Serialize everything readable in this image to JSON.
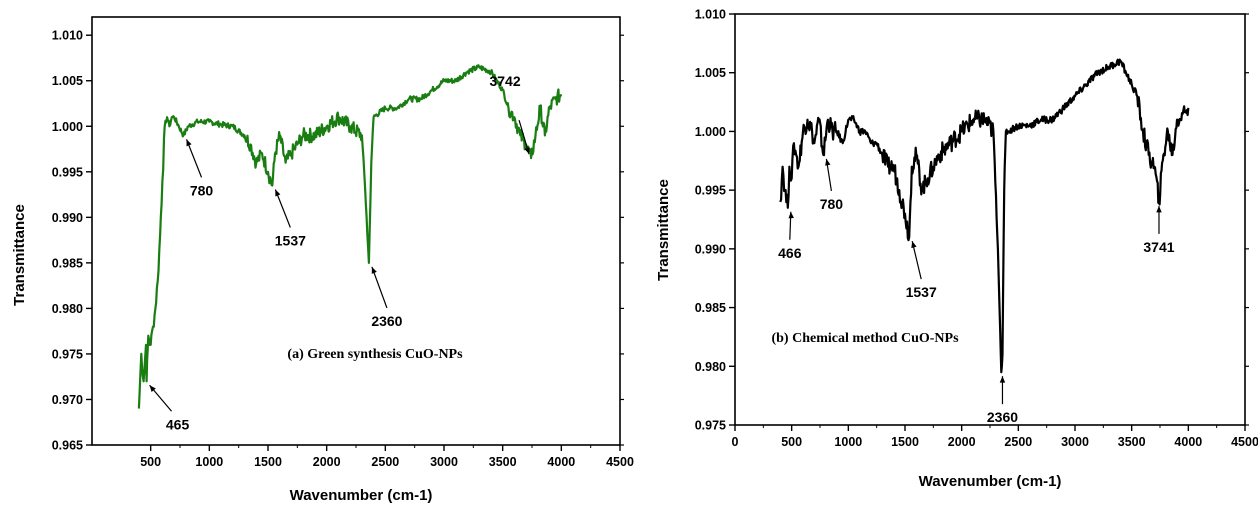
{
  "chart_data": [
    {
      "type": "line",
      "caption": "(a) Green synthesis CuO-NPs",
      "xlabel": "Wavenumber (cm-1)",
      "ylabel": "Transmittance",
      "xlim": [
        0,
        4500
      ],
      "ylim": [
        0.965,
        1.012
      ],
      "xticks": [
        500,
        1000,
        1500,
        2000,
        2500,
        3000,
        3500,
        4000,
        4500
      ],
      "yticks": [
        0.965,
        0.97,
        0.975,
        0.98,
        0.985,
        0.99,
        0.995,
        1.0,
        1.005,
        1.01
      ],
      "line_color": "#1a7d12",
      "series": [
        {
          "x": [
            400,
            420,
            440,
            460,
            465,
            480,
            500,
            520,
            540,
            560,
            580,
            600,
            620,
            640,
            660,
            680,
            700,
            740,
            780,
            820,
            900,
            1000,
            1100,
            1200,
            1300,
            1350,
            1400,
            1450,
            1500,
            1537,
            1560,
            1600,
            1650,
            1700,
            1750,
            1800,
            1900,
            2000,
            2100,
            2200,
            2300,
            2320,
            2340,
            2360,
            2380,
            2400,
            2500,
            2600,
            2700,
            2800,
            2900,
            3000,
            3100,
            3200,
            3300,
            3400,
            3450,
            3500,
            3550,
            3600,
            3650,
            3700,
            3742,
            3780,
            3820,
            3860,
            3900,
            3950,
            4000
          ],
          "y": [
            0.969,
            0.975,
            0.972,
            0.976,
            0.972,
            0.977,
            0.976,
            0.978,
            0.98,
            0.983,
            0.988,
            0.994,
            1.0,
            1.001,
            1.0,
            1.001,
            1.001,
            1.0,
            0.999,
            1.0,
            1.0005,
            1.0005,
            1.0002,
            1.0,
            0.999,
            0.998,
            0.996,
            0.997,
            0.995,
            0.9935,
            0.997,
            0.999,
            0.996,
            0.997,
            0.998,
            0.999,
            0.999,
            1.0,
            1.001,
            1.0,
            0.999,
            0.995,
            0.99,
            0.985,
            0.996,
            1.001,
            1.002,
            1.002,
            1.003,
            1.003,
            1.004,
            1.005,
            1.005,
            1.006,
            1.0065,
            1.006,
            1.005,
            1.004,
            1.002,
            1.001,
            0.999,
            0.998,
            0.9965,
            0.999,
            1.002,
            0.999,
            1.002,
            1.003,
            1.0035
          ]
        }
      ],
      "annotations": [
        {
          "label": "465",
          "x": 465,
          "y": 0.972
        },
        {
          "label": "780",
          "x": 780,
          "y": 0.999
        },
        {
          "label": "1537",
          "x": 1537,
          "y": 0.9935
        },
        {
          "label": "2360",
          "x": 2360,
          "y": 0.985
        },
        {
          "label": "3742",
          "x": 3742,
          "y": 0.9965
        }
      ]
    },
    {
      "type": "line",
      "caption": "(b) Chemical method CuO-NPs",
      "xlabel": "Wavenumber (cm-1)",
      "ylabel": "Transmittance",
      "xlim": [
        0,
        4500
      ],
      "ylim": [
        0.975,
        1.01
      ],
      "xticks": [
        0,
        500,
        1000,
        1500,
        2000,
        2500,
        3000,
        3500,
        4000,
        4500
      ],
      "yticks": [
        0.975,
        0.98,
        0.985,
        0.99,
        0.995,
        1.0,
        1.005,
        1.01
      ],
      "line_color": "#000000",
      "series": [
        {
          "x": [
            400,
            420,
            440,
            466,
            480,
            500,
            520,
            540,
            560,
            600,
            640,
            680,
            700,
            740,
            780,
            820,
            860,
            900,
            950,
            1000,
            1050,
            1100,
            1150,
            1200,
            1250,
            1300,
            1350,
            1400,
            1450,
            1500,
            1537,
            1560,
            1600,
            1650,
            1700,
            1750,
            1800,
            1900,
            2000,
            2100,
            2200,
            2280,
            2320,
            2340,
            2350,
            2360,
            2375,
            2390,
            2410,
            2500,
            2600,
            2700,
            2800,
            2900,
            3000,
            3100,
            3200,
            3300,
            3400,
            3450,
            3500,
            3550,
            3600,
            3650,
            3700,
            3741,
            3780,
            3820,
            3860,
            3900,
            3950,
            4000
          ],
          "y": [
            0.994,
            0.997,
            0.995,
            0.9935,
            0.997,
            0.996,
            0.999,
            0.998,
            0.997,
            1.0,
            1.001,
            1.0,
            0.999,
            1.001,
            0.998,
            1.001,
            1.0,
            1.0,
            0.999,
            1.001,
            1.001,
            1.0,
            1.0,
            0.999,
            0.999,
            0.998,
            0.997,
            0.997,
            0.995,
            0.993,
            0.991,
            0.997,
            0.998,
            0.995,
            0.996,
            0.997,
            0.998,
            0.999,
            1.0,
            1.001,
            1.001,
            1.0,
            0.99,
            0.983,
            0.9795,
            0.981,
            0.995,
            1.0,
            1.0,
            1.0005,
            1.0005,
            1.001,
            1.001,
            1.002,
            1.003,
            1.004,
            1.005,
            1.0055,
            1.006,
            1.005,
            1.004,
            1.003,
            1.0,
            0.998,
            0.997,
            0.994,
            0.998,
            1.0,
            0.998,
            1.001,
            1.0015,
            1.002
          ]
        }
      ],
      "annotations": [
        {
          "label": "466",
          "x": 466,
          "y": 0.9935
        },
        {
          "label": "780",
          "x": 780,
          "y": 0.998
        },
        {
          "label": "1537",
          "x": 1537,
          "y": 0.991
        },
        {
          "label": "2360",
          "x": 2360,
          "y": 0.9795
        },
        {
          "label": "3741",
          "x": 3741,
          "y": 0.994
        }
      ]
    }
  ]
}
